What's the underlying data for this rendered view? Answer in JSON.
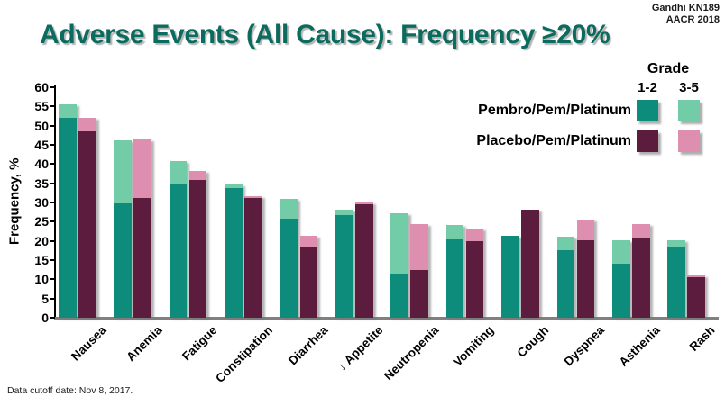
{
  "credit": {
    "line1": "Gandhi KN189",
    "line2": "AACR 2018"
  },
  "title": "Adverse Events (All Cause): Frequency ≥20%",
  "footer": "Data cutoff date:  Nov 8, 2017.",
  "legend": {
    "header": "Grade",
    "col1": "1-2",
    "col2": "3-5",
    "rows": [
      {
        "label": "Pembro/Pem/Platinum",
        "color_1_2": "#0e8c7b",
        "color_3_5": "#72cca7"
      },
      {
        "label": "Placebo/Pem/Platinum",
        "color_1_2": "#5c1c3d",
        "color_3_5": "#de8fb0"
      }
    ]
  },
  "chart_data": {
    "type": "bar",
    "stacked": true,
    "grouped": true,
    "title": "Adverse Events (All Cause): Frequency ≥20%",
    "xlabel": "",
    "ylabel": "Frequency, %",
    "ylim": [
      0,
      60
    ],
    "ytick_step": 5,
    "grid": false,
    "legend_position": "top-right",
    "categories": [
      "Nausea",
      "Anemia",
      "Fatigue",
      "Constipation",
      "Diarrhea",
      "↓ Appetite",
      "Neutropenia",
      "Vomiting",
      "Cough",
      "Dyspnea",
      "Asthenia",
      "Rash"
    ],
    "series": [
      {
        "name": "Pembro/Pem/Platinum",
        "grade_1_2": {
          "label": "Grade 1-2",
          "color": "#0e8c7b",
          "values": [
            52.1,
            29.8,
            35.0,
            33.8,
            25.7,
            26.7,
            11.4,
            20.5,
            21.4,
            17.5,
            14.1,
            18.5
          ]
        },
        "grade_3_5": {
          "label": "Grade 3-5",
          "color": "#72cca7",
          "values": [
            3.5,
            16.3,
            5.7,
            1.0,
            5.2,
            1.5,
            15.8,
            3.7,
            0,
            3.7,
            6.1,
            1.7
          ]
        },
        "totals": [
          55.6,
          46.1,
          40.7,
          34.8,
          30.9,
          28.2,
          27.2,
          24.2,
          21.4,
          21.2,
          20.2,
          20.2
        ]
      },
      {
        "name": "Placebo/Pem/Platinum",
        "grade_1_2": {
          "label": "Grade 1-2",
          "color": "#5c1c3d",
          "values": [
            48.5,
            31.2,
            35.9,
            31.1,
            18.2,
            29.6,
            12.4,
            19.9,
            28.1,
            20.2,
            20.9,
            10.6
          ]
        },
        "grade_3_5": {
          "label": "Grade 3-5",
          "color": "#de8fb0",
          "values": [
            3.5,
            15.3,
            2.4,
            0.5,
            3.1,
            0.5,
            11.9,
            3.4,
            0,
            5.3,
            3.4,
            0.5
          ]
        },
        "totals": [
          52.0,
          46.5,
          38.3,
          31.6,
          21.3,
          30.1,
          24.3,
          23.3,
          28.1,
          25.5,
          24.3,
          11.1
        ]
      }
    ]
  }
}
